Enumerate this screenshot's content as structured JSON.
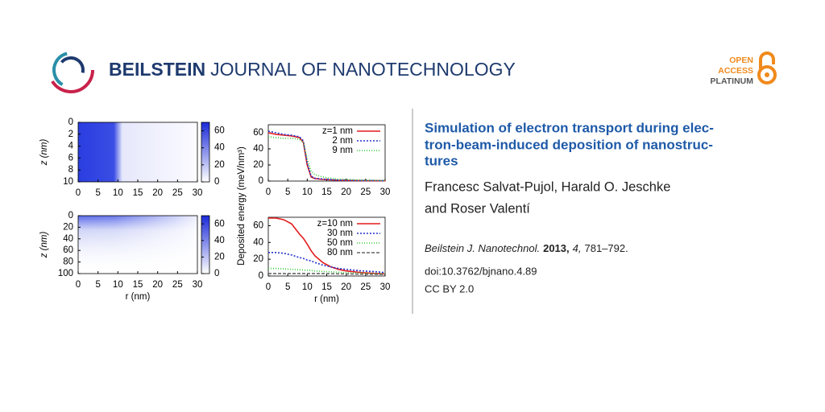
{
  "header": {
    "brand_bold": "BEILSTEIN",
    "brand_rest": "JOURNAL OF NANOTECHNOLOGY",
    "badge": [
      "OPEN",
      "ACCESS",
      "PLATINUM"
    ]
  },
  "article": {
    "title_lines": [
      "Simulation of electron transport during elec-",
      "tron-beam-induced deposition of nanostruc-",
      "tures"
    ],
    "author_lines": [
      "Francesc Salvat-Pujol, Harald O. Jeschke",
      "and Roser Valentí"
    ],
    "citation": {
      "journal": "Beilstein J. Nanotechnol.",
      "year": "2013,",
      "volume": "4,",
      "pages": "781–792."
    },
    "doi": "doi:10.3762/bjnano.4.89",
    "license": "CC BY 2.0"
  },
  "figure": {
    "shared_ylabel": "Deposited energy (meV/nm³)",
    "panels": [
      {
        "type": "heatmap",
        "ylabel": "z (nm)",
        "xlim": [
          0,
          30
        ],
        "xticks": [
          0,
          5,
          10,
          15,
          20,
          25,
          30
        ],
        "ylim": [
          0,
          10
        ],
        "yticks": [
          0,
          2,
          4,
          6,
          8,
          10
        ],
        "clim": [
          0,
          70
        ],
        "cticks": [
          0,
          20,
          40,
          60
        ]
      },
      {
        "type": "line",
        "xlim": [
          0,
          30
        ],
        "xticks": [
          0,
          5,
          10,
          15,
          20,
          25,
          30
        ],
        "ylim": [
          0,
          70
        ],
        "yticks": [
          0,
          20,
          40,
          60
        ],
        "x": [
          0,
          2,
          4,
          6,
          8,
          9,
          10,
          11,
          12,
          14,
          16,
          18,
          20,
          24,
          28,
          30
        ],
        "series": [
          {
            "name": "z=1 nm",
            "color": "#e41a1c",
            "dash": "none",
            "values": [
              60,
              58,
              57,
              56,
              54,
              48,
              20,
              5,
              3,
              2,
              1.5,
              1,
              0.8,
              0.5,
              0.4,
              0.3
            ]
          },
          {
            "name": "2 nm",
            "color": "#2233cc",
            "dash": "2,2",
            "values": [
              62,
              60,
              58,
              57,
              55,
              50,
              22,
              6,
              3.5,
              2.5,
              1.8,
              1.2,
              1,
              0.6,
              0.5,
              0.4
            ]
          },
          {
            "name": "9 nm",
            "color": "#33cc33",
            "dash": "1,2",
            "values": [
              55,
              54,
              53,
              53,
              52,
              48,
              28,
              12,
              8,
              5,
              3.5,
              2.5,
              2,
              1.2,
              0.8,
              0.6
            ]
          }
        ]
      },
      {
        "type": "heatmap",
        "ylabel": "z (nm)",
        "xlabel": "r (nm)",
        "xlim": [
          0,
          30
        ],
        "xticks": [
          0,
          5,
          10,
          15,
          20,
          25,
          30
        ],
        "ylim": [
          0,
          100
        ],
        "yticks": [
          0,
          20,
          40,
          60,
          80,
          100
        ],
        "clim": [
          0,
          70
        ],
        "cticks": [
          0,
          20,
          40,
          60
        ]
      },
      {
        "type": "line",
        "xlabel": "r (nm)",
        "xlim": [
          0,
          30
        ],
        "xticks": [
          0,
          5,
          10,
          15,
          20,
          25,
          30
        ],
        "ylim": [
          0,
          70
        ],
        "yticks": [
          0,
          20,
          40,
          60
        ],
        "x": [
          0,
          2,
          4,
          6,
          8,
          9,
          10,
          11,
          12,
          14,
          16,
          18,
          20,
          24,
          28,
          30
        ],
        "series": [
          {
            "name": "z=10 nm",
            "color": "#e41a1c",
            "dash": "none",
            "values": [
              69,
              69,
              67,
              62,
              50,
              45,
              38,
              30,
              24,
              16,
              11,
              8,
              6,
              4,
              3,
              2.5
            ]
          },
          {
            "name": "30 nm",
            "color": "#2233cc",
            "dash": "2,2",
            "values": [
              28,
              28,
              27,
              25,
              22,
              21,
              19,
              18,
              16,
              13,
              11,
              9,
              8,
              6,
              5,
              4
            ]
          },
          {
            "name": "50 nm",
            "color": "#33cc33",
            "dash": "1,2",
            "values": [
              9,
              9,
              8.5,
              8,
              7.5,
              7,
              7,
              6.5,
              6,
              5.5,
              5,
              4.5,
              4,
              3.5,
              3,
              3
            ]
          },
          {
            "name": "80 nm",
            "color": "#666666",
            "dash": "4,2",
            "values": [
              3,
              3,
              3,
              3,
              3,
              3,
              3,
              3,
              3,
              3,
              2.8,
              2.6,
              2.5,
              2.2,
              2,
              2
            ]
          }
        ]
      }
    ]
  }
}
